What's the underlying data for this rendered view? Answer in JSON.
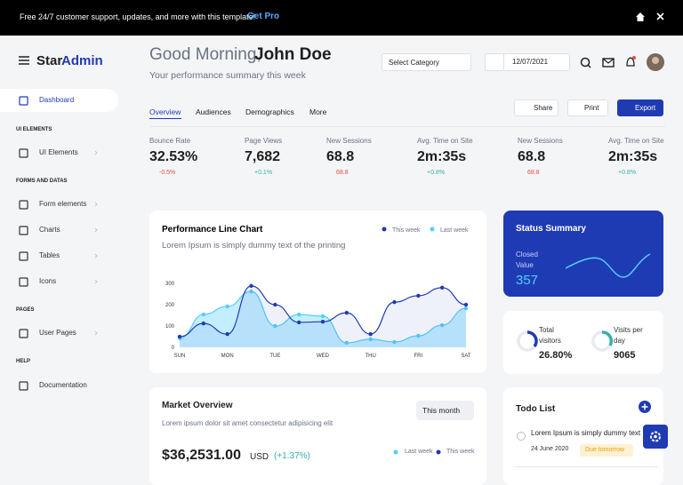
{
  "banner": {
    "text": "Free 24/7 customer support, updates, and more with this template!",
    "link": "Get Pro"
  },
  "brand": {
    "star": "Star",
    "admin": "Admin"
  },
  "sidebar": {
    "dashboard": "Dashboard",
    "sections": [
      "UI ELEMENTS",
      "FORMS AND DATAS",
      "PAGES",
      "HELP"
    ],
    "items": [
      "UI Elements",
      "Form elements",
      "Charts",
      "Tables",
      "Icons",
      "User Pages",
      "Documentation"
    ]
  },
  "header": {
    "greeting": "Good Morning,",
    "name": "John Doe",
    "subtitle": "Your performance summary this week",
    "category": "Select Category",
    "date": "12/07/2021"
  },
  "tabs": [
    "Overview",
    "Audiences",
    "Demographics",
    "More"
  ],
  "buttons": [
    "Share",
    "Print",
    "Export"
  ],
  "stats": [
    {
      "label": "Bounce Rate",
      "value": "32.53%",
      "change": "-0.5%"
    },
    {
      "label": "Page Views",
      "value": "7,682",
      "change": "+0.1%"
    },
    {
      "label": "New Sessions",
      "value": "68.8",
      "change": "68.8"
    },
    {
      "label": "Avg. Time on Site",
      "value": "2m:35s",
      "change": "+0.8%"
    },
    {
      "label": "New Sessions",
      "value": "68.8",
      "change": "68.8"
    },
    {
      "label": "Avg. Time on Site",
      "value": "2m:35s",
      "change": "+0.8%"
    }
  ],
  "performance_chart": {
    "type": "line",
    "title": "Performance Line Chart",
    "subtitle": "Lorem Ipsum is simply dummy text of the printing",
    "x": [
      0,
      1,
      2,
      3,
      4,
      5,
      6,
      7,
      8,
      9,
      10,
      11,
      12
    ],
    "xlim": [
      0,
      12
    ],
    "xticks": [
      {
        "value": 0,
        "label": "SUN"
      },
      {
        "value": 2,
        "label": "MON"
      },
      {
        "value": 4,
        "label": "TUE"
      },
      {
        "value": 6,
        "label": "WED"
      },
      {
        "value": 8,
        "label": "THU"
      },
      {
        "value": 10,
        "label": "FRI"
      },
      {
        "value": 12,
        "label": "SAT"
      }
    ],
    "ylim": [
      0,
      300
    ],
    "yticks": [
      0,
      100,
      200,
      300
    ],
    "series": [
      {
        "name": "This week",
        "color": "#1f3bb3",
        "values": [
          50,
          112,
          62,
          288,
          200,
          117,
          120,
          162,
          62,
          212,
          242,
          280,
          200
        ]
      },
      {
        "name": "Last week",
        "color": "#52cdff",
        "values": [
          42,
          154,
          192,
          262,
          100,
          154,
          146,
          21,
          38,
          25,
          54,
          104,
          183
        ]
      }
    ]
  },
  "status": {
    "title": "Status Summary",
    "label": "Closed Value",
    "value": "357"
  },
  "visitors": [
    {
      "label": "Total visitors",
      "value": "26.80%"
    },
    {
      "label": "Visits per day",
      "value": "9065"
    }
  ],
  "market": {
    "title": "Market Overview",
    "subtitle": "Lorem ipsum dolor sit amet consectetur adipisicing elit",
    "period": "This month",
    "value": "$36,2531.00",
    "unit": "USD",
    "change": "(+1.37%)",
    "legend": [
      "Last week",
      "This week"
    ]
  },
  "todo": {
    "title": "Todo List",
    "item": "Lorem Ipsum is simply dummy text",
    "date": "24 June 2020",
    "badge": "Due tomorrow"
  }
}
